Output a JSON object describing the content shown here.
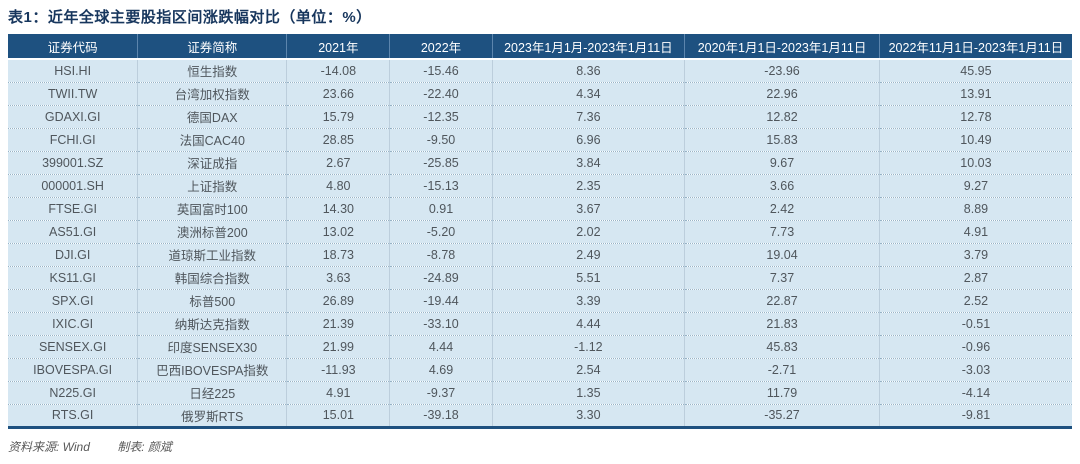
{
  "title": "表1：近年全球主要股指区间涨跌幅对比（单位：%）",
  "table": {
    "columns": [
      "证券代码",
      "证券简称",
      "2021年",
      "2022年",
      "2023年1月1月-2023年1月11日",
      "2020年1月1日-2023年1月11日",
      "2022年11月1日-2023年1月11日"
    ],
    "rows": [
      [
        "HSI.HI",
        "恒生指数",
        "-14.08",
        "-15.46",
        "8.36",
        "-23.96",
        "45.95"
      ],
      [
        "TWII.TW",
        "台湾加权指数",
        "23.66",
        "-22.40",
        "4.34",
        "22.96",
        "13.91"
      ],
      [
        "GDAXI.GI",
        "德国DAX",
        "15.79",
        "-12.35",
        "7.36",
        "12.82",
        "12.78"
      ],
      [
        "FCHI.GI",
        "法国CAC40",
        "28.85",
        "-9.50",
        "6.96",
        "15.83",
        "10.49"
      ],
      [
        "399001.SZ",
        "深证成指",
        "2.67",
        "-25.85",
        "3.84",
        "9.67",
        "10.03"
      ],
      [
        "000001.SH",
        "上证指数",
        "4.80",
        "-15.13",
        "2.35",
        "3.66",
        "9.27"
      ],
      [
        "FTSE.GI",
        "英国富时100",
        "14.30",
        "0.91",
        "3.67",
        "2.42",
        "8.89"
      ],
      [
        "AS51.GI",
        "澳洲标普200",
        "13.02",
        "-5.20",
        "2.02",
        "7.73",
        "4.91"
      ],
      [
        "DJI.GI",
        "道琼斯工业指数",
        "18.73",
        "-8.78",
        "2.49",
        "19.04",
        "3.79"
      ],
      [
        "KS11.GI",
        "韩国综合指数",
        "3.63",
        "-24.89",
        "5.51",
        "7.37",
        "2.87"
      ],
      [
        "SPX.GI",
        "标普500",
        "26.89",
        "-19.44",
        "3.39",
        "22.87",
        "2.52"
      ],
      [
        "IXIC.GI",
        "纳斯达克指数",
        "21.39",
        "-33.10",
        "4.44",
        "21.83",
        "-0.51"
      ],
      [
        "SENSEX.GI",
        "印度SENSEX30",
        "21.99",
        "4.44",
        "-1.12",
        "45.83",
        "-0.96"
      ],
      [
        "IBOVESPA.GI",
        "巴西IBOVESPA指数",
        "-11.93",
        "4.69",
        "2.54",
        "-2.71",
        "-3.03"
      ],
      [
        "N225.GI",
        "日经225",
        "4.91",
        "-9.37",
        "1.35",
        "11.79",
        "-4.14"
      ],
      [
        "RTS.GI",
        "俄罗斯RTS",
        "15.01",
        "-39.18",
        "3.30",
        "-35.27",
        "-9.81"
      ]
    ]
  },
  "footer": {
    "source_label": "资料来源: Wind",
    "author_label": "制表: 颜斌"
  },
  "colors": {
    "header_bg": "#1e5180",
    "row_bg": "#d6e7f2",
    "title_color": "#17365d",
    "bottom_border": "#1e5180",
    "cell_text": "#4f565c",
    "footer_text": "#595959"
  }
}
